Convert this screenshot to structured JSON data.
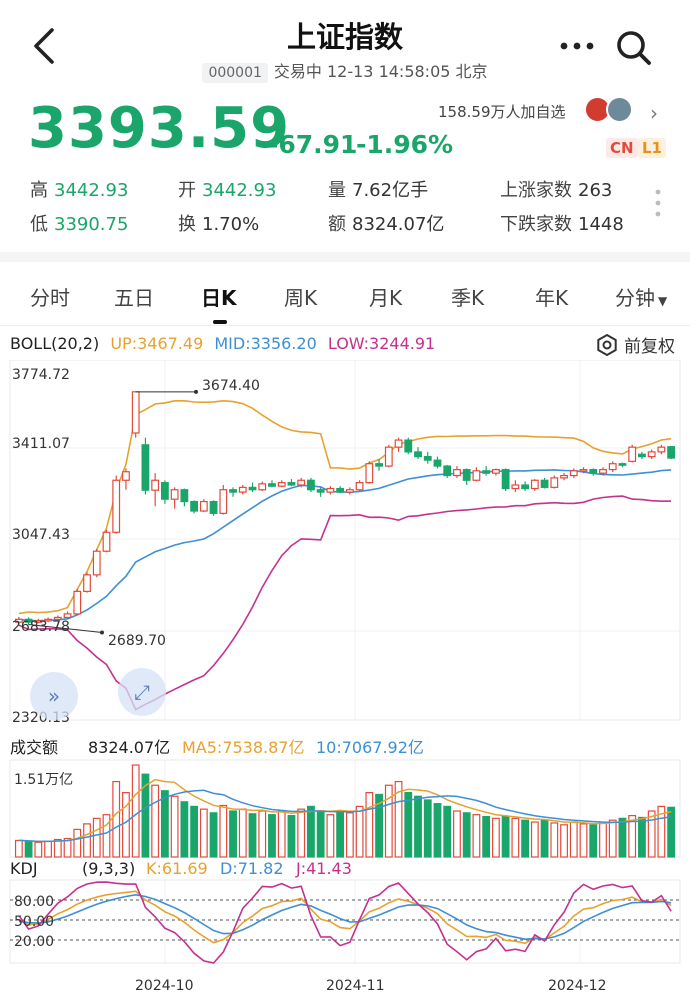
{
  "header": {
    "title": "上证指数",
    "code": "000001",
    "status": "交易中 12-13 14:58:05 北京"
  },
  "quote": {
    "price": "3393.59",
    "change": "-67.91",
    "change_pct": "-1.96%",
    "followers": "158.59万人加自选",
    "tag_cn": "CN",
    "tag_l1": "L1"
  },
  "stats": {
    "high_label": "高",
    "high": "3442.93",
    "open_label": "开",
    "open": "3442.93",
    "volume_label": "量",
    "volume": "7.62亿手",
    "up_label": "上涨家数",
    "up": "263",
    "low_label": "低",
    "low": "3390.75",
    "turnover_label": "换",
    "turnover": "1.70%",
    "amount_label": "额",
    "amount": "8324.07亿",
    "down_label": "下跌家数",
    "down": "1448"
  },
  "tabs": [
    "分时",
    "五日",
    "日K",
    "周K",
    "月K",
    "季K",
    "年K",
    "分钟"
  ],
  "active_tab": "日K",
  "colors": {
    "up": "#e24b3c",
    "down": "#1aa66a",
    "up_ma": "#e8a12e",
    "mid": "#3d8fd6",
    "low": "#c4318f"
  },
  "icons": [
    "back-arrow-icon",
    "more-dots-icon",
    "search-icon",
    "chevron-right-icon",
    "dropdown-caret-icon",
    "settings-gear-icon",
    "fast-forward-icon",
    "expand-icon"
  ],
  "boll": {
    "name": "BOLL(20,2)",
    "up": "UP:3467.49",
    "mid": "MID:3356.20",
    "low": "LOW:3244.91",
    "adjust_label": "前复权"
  },
  "volume_panel": {
    "name": "成交额",
    "value": "8324.07亿",
    "ma5": "MA5:7538.87亿",
    "ma10": "10:7067.92亿",
    "axis_max": "1.51万亿"
  },
  "kdj": {
    "name": "KDJ",
    "params": "(9,3,3)",
    "k": "K:61.69",
    "d": "D:71.82",
    "j": "J:41.43"
  },
  "chart_data": {
    "type": "candlestick",
    "y_ticks": [
      "3774.72",
      "3411.07",
      "3047.43",
      "2683.78",
      "2320.13"
    ],
    "y_range": [
      2320.13,
      3774.72
    ],
    "max_label": "3674.40",
    "min_label": "2689.70",
    "x_labels": [
      "2024-10",
      "2024-11",
      "2024-12"
    ],
    "kdj_ticks": [
      "80.00",
      "50.00",
      "20.00"
    ],
    "candles": [
      {
        "o": 2700,
        "c": 2712,
        "h": 2722,
        "l": 2695
      },
      {
        "o": 2712,
        "c": 2700,
        "h": 2720,
        "l": 2690
      },
      {
        "o": 2700,
        "c": 2706,
        "h": 2714,
        "l": 2696
      },
      {
        "o": 2706,
        "c": 2712,
        "h": 2720,
        "l": 2700
      },
      {
        "o": 2712,
        "c": 2720,
        "h": 2728,
        "l": 2706
      },
      {
        "o": 2720,
        "c": 2735,
        "h": 2745,
        "l": 2714
      },
      {
        "o": 2735,
        "c": 2830,
        "h": 2840,
        "l": 2730
      },
      {
        "o": 2830,
        "c": 2900,
        "h": 2910,
        "l": 2825
      },
      {
        "o": 2900,
        "c": 3000,
        "h": 3010,
        "l": 2890
      },
      {
        "o": 3000,
        "c": 3080,
        "h": 3090,
        "l": 2995
      },
      {
        "o": 3080,
        "c": 3300,
        "h": 3320,
        "l": 3075
      },
      {
        "o": 3300,
        "c": 3336,
        "h": 3350,
        "l": 3260
      },
      {
        "o": 3500,
        "c": 3674,
        "h": 3674,
        "l": 3480
      },
      {
        "o": 3450,
        "c": 3258,
        "h": 3480,
        "l": 3240
      },
      {
        "o": 3258,
        "c": 3300,
        "h": 3330,
        "l": 3190
      },
      {
        "o": 3290,
        "c": 3220,
        "h": 3300,
        "l": 3200
      },
      {
        "o": 3220,
        "c": 3260,
        "h": 3270,
        "l": 3180
      },
      {
        "o": 3260,
        "c": 3210,
        "h": 3265,
        "l": 3190
      },
      {
        "o": 3210,
        "c": 3170,
        "h": 3215,
        "l": 3160
      },
      {
        "o": 3170,
        "c": 3210,
        "h": 3220,
        "l": 3165
      },
      {
        "o": 3210,
        "c": 3160,
        "h": 3215,
        "l": 3150
      },
      {
        "o": 3160,
        "c": 3260,
        "h": 3280,
        "l": 3155
      },
      {
        "o": 3260,
        "c": 3250,
        "h": 3270,
        "l": 3230
      },
      {
        "o": 3250,
        "c": 3270,
        "h": 3280,
        "l": 3240
      },
      {
        "o": 3270,
        "c": 3260,
        "h": 3290,
        "l": 3250
      },
      {
        "o": 3260,
        "c": 3285,
        "h": 3295,
        "l": 3255
      },
      {
        "o": 3285,
        "c": 3275,
        "h": 3300,
        "l": 3270
      },
      {
        "o": 3275,
        "c": 3290,
        "h": 3300,
        "l": 3270
      },
      {
        "o": 3290,
        "c": 3280,
        "h": 3305,
        "l": 3275
      },
      {
        "o": 3280,
        "c": 3300,
        "h": 3310,
        "l": 3270
      },
      {
        "o": 3300,
        "c": 3260,
        "h": 3310,
        "l": 3250
      },
      {
        "o": 3260,
        "c": 3250,
        "h": 3270,
        "l": 3230
      },
      {
        "o": 3250,
        "c": 3265,
        "h": 3275,
        "l": 3240
      },
      {
        "o": 3265,
        "c": 3250,
        "h": 3275,
        "l": 3245
      },
      {
        "o": 3250,
        "c": 3260,
        "h": 3270,
        "l": 3240
      },
      {
        "o": 3260,
        "c": 3290,
        "h": 3300,
        "l": 3255
      },
      {
        "o": 3290,
        "c": 3370,
        "h": 3380,
        "l": 3285
      },
      {
        "o": 3370,
        "c": 3360,
        "h": 3390,
        "l": 3340
      },
      {
        "o": 3360,
        "c": 3440,
        "h": 3450,
        "l": 3355
      },
      {
        "o": 3440,
        "c": 3470,
        "h": 3480,
        "l": 3420
      },
      {
        "o": 3470,
        "c": 3420,
        "h": 3480,
        "l": 3410
      },
      {
        "o": 3420,
        "c": 3400,
        "h": 3440,
        "l": 3390
      },
      {
        "o": 3400,
        "c": 3385,
        "h": 3420,
        "l": 3370
      },
      {
        "o": 3385,
        "c": 3360,
        "h": 3400,
        "l": 3350
      },
      {
        "o": 3360,
        "c": 3320,
        "h": 3365,
        "l": 3310
      },
      {
        "o": 3320,
        "c": 3345,
        "h": 3360,
        "l": 3310
      },
      {
        "o": 3345,
        "c": 3300,
        "h": 3350,
        "l": 3280
      },
      {
        "o": 3300,
        "c": 3340,
        "h": 3355,
        "l": 3295
      },
      {
        "o": 3340,
        "c": 3330,
        "h": 3360,
        "l": 3320
      },
      {
        "o": 3330,
        "c": 3345,
        "h": 3350,
        "l": 3320
      },
      {
        "o": 3345,
        "c": 3265,
        "h": 3350,
        "l": 3255
      },
      {
        "o": 3265,
        "c": 3280,
        "h": 3300,
        "l": 3250
      },
      {
        "o": 3280,
        "c": 3265,
        "h": 3295,
        "l": 3255
      },
      {
        "o": 3265,
        "c": 3300,
        "h": 3305,
        "l": 3255
      },
      {
        "o": 3300,
        "c": 3270,
        "h": 3310,
        "l": 3265
      },
      {
        "o": 3270,
        "c": 3310,
        "h": 3320,
        "l": 3265
      },
      {
        "o": 3310,
        "c": 3320,
        "h": 3330,
        "l": 3300
      },
      {
        "o": 3320,
        "c": 3340,
        "h": 3350,
        "l": 3310
      },
      {
        "o": 3340,
        "c": 3345,
        "h": 3355,
        "l": 3330
      },
      {
        "o": 3345,
        "c": 3330,
        "h": 3350,
        "l": 3320
      },
      {
        "o": 3330,
        "c": 3345,
        "h": 3355,
        "l": 3320
      },
      {
        "o": 3345,
        "c": 3370,
        "h": 3380,
        "l": 3335
      },
      {
        "o": 3370,
        "c": 3365,
        "h": 3375,
        "l": 3355
      },
      {
        "o": 3380,
        "c": 3440,
        "h": 3450,
        "l": 3375
      },
      {
        "o": 3410,
        "c": 3400,
        "h": 3420,
        "l": 3390
      },
      {
        "o": 3400,
        "c": 3420,
        "h": 3430,
        "l": 3390
      },
      {
        "o": 3420,
        "c": 3440,
        "h": 3450,
        "l": 3410
      },
      {
        "o": 3442,
        "c": 3394,
        "h": 3443,
        "l": 3390
      }
    ],
    "volume_ratio": [
      0.18,
      0.17,
      0.16,
      0.17,
      0.19,
      0.2,
      0.3,
      0.36,
      0.42,
      0.46,
      0.82,
      0.7,
      1.0,
      0.9,
      0.78,
      0.72,
      0.66,
      0.6,
      0.55,
      0.52,
      0.48,
      0.56,
      0.5,
      0.52,
      0.47,
      0.5,
      0.46,
      0.5,
      0.45,
      0.52,
      0.55,
      0.5,
      0.46,
      0.5,
      0.48,
      0.55,
      0.7,
      0.68,
      0.78,
      0.82,
      0.7,
      0.66,
      0.62,
      0.58,
      0.55,
      0.5,
      0.48,
      0.46,
      0.44,
      0.42,
      0.44,
      0.42,
      0.4,
      0.38,
      0.4,
      0.37,
      0.35,
      0.38,
      0.36,
      0.35,
      0.38,
      0.4,
      0.42,
      0.45,
      0.43,
      0.5,
      0.55,
      0.54
    ]
  }
}
